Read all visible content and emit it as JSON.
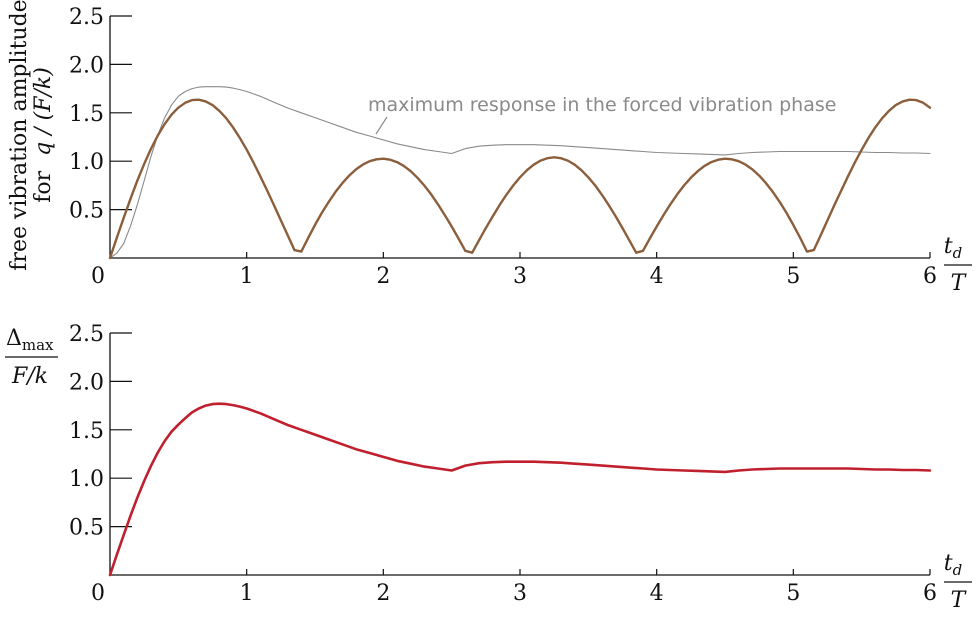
{
  "colors": {
    "top_series": "#8b5e3c",
    "top_reference": "#8a8a8a",
    "bottom_series": "#c0202e",
    "axis": "#111111"
  },
  "chart_data": [
    {
      "type": "line",
      "ylabel_line1": "free vibration amplitude",
      "ylabel_line2_prefix": "for",
      "ylabel_line2_math": "q / (F/k)",
      "xlabel_numerator": "t",
      "xlabel_numerator_sub": "d",
      "xlabel_denominator": "T",
      "xlim": [
        0,
        6
      ],
      "ylim": [
        0,
        2.5
      ],
      "xticks": [
        "0",
        "1",
        "2",
        "3",
        "4",
        "5",
        "6"
      ],
      "yticks": [
        "0.5",
        "1.0",
        "1.5",
        "2.0",
        "2.5"
      ],
      "grid": false,
      "annotation": {
        "text": "maximum response in the forced vibration phase",
        "points_to": [
          1.95,
          1.31
        ]
      },
      "series": [
        {
          "style": "thick",
          "x": [
            0,
            0.05,
            0.1,
            0.15,
            0.2,
            0.25,
            0.3,
            0.35,
            0.4,
            0.45,
            0.5,
            0.55,
            0.6,
            0.65,
            0.7,
            0.75,
            0.8,
            0.85,
            0.9,
            0.95,
            1,
            1.05,
            1.1,
            1.15,
            1.2,
            1.25,
            1.3,
            1.35,
            1.4,
            1.45,
            1.5,
            1.55,
            1.6,
            1.65,
            1.7,
            1.75,
            1.8,
            1.85,
            1.9,
            1.95,
            2,
            2.05,
            2.1,
            2.15,
            2.2,
            2.25,
            2.3,
            2.35,
            2.4,
            2.45,
            2.5,
            2.55,
            2.6,
            2.65,
            2.7,
            2.75,
            2.8,
            2.85,
            2.9,
            2.95,
            3,
            3.05,
            3.1,
            3.15,
            3.2,
            3.25,
            3.3,
            3.35,
            3.4,
            3.45,
            3.5,
            3.55,
            3.6,
            3.65,
            3.7,
            3.75,
            3.8,
            3.85,
            3.9,
            3.95,
            4,
            4.05,
            4.1,
            4.15,
            4.2,
            4.25,
            4.3,
            4.35,
            4.4,
            4.45,
            4.5,
            4.55,
            4.6,
            4.65,
            4.7,
            4.75,
            4.8,
            4.85,
            4.9,
            4.95,
            5,
            5.05,
            5.1,
            5.15,
            5.2,
            5.25,
            5.3,
            5.35,
            5.4,
            5.45,
            5.5,
            5.55,
            5.6,
            5.65,
            5.7,
            5.75,
            5.8,
            5.85,
            5.9,
            5.95,
            6
          ],
          "y": [
            0,
            0.209,
            0.414,
            0.612,
            0.799,
            0.972,
            1.128,
            1.266,
            1.384,
            1.48,
            1.553,
            1.603,
            1.631,
            1.635,
            1.618,
            1.58,
            1.521,
            1.444,
            1.35,
            1.241,
            1.119,
            0.986,
            0.844,
            0.696,
            0.544,
            0.389,
            0.234,
            0.082,
            0.066,
            0.208,
            0.342,
            0.466,
            0.58,
            0.683,
            0.773,
            0.851,
            0.915,
            0.965,
            1.0,
            1.02,
            1.026,
            1.016,
            0.991,
            0.951,
            0.897,
            0.829,
            0.749,
            0.657,
            0.554,
            0.443,
            0.325,
            0.201,
            0.074,
            0.055,
            0.183,
            0.309,
            0.43,
            0.545,
            0.652,
            0.749,
            0.834,
            0.906,
            0.964,
            1.006,
            1.031,
            1.04,
            1.031,
            1.006,
            0.964,
            0.906,
            0.834,
            0.749,
            0.652,
            0.545,
            0.43,
            0.309,
            0.183,
            0.055,
            0.074,
            0.201,
            0.325,
            0.443,
            0.554,
            0.657,
            0.749,
            0.829,
            0.897,
            0.951,
            0.991,
            1.016,
            1.026,
            1.02,
            1.0,
            0.965,
            0.915,
            0.851,
            0.773,
            0.683,
            0.58,
            0.466,
            0.342,
            0.208,
            0.066,
            0.082,
            0.234,
            0.389,
            0.544,
            0.696,
            0.844,
            0.986,
            1.119,
            1.241,
            1.35,
            1.444,
            1.521,
            1.58,
            1.618,
            1.635,
            1.631,
            1.603,
            1.553
          ]
        },
        {
          "style": "thin",
          "x": [
            0,
            0.05,
            0.1,
            0.15,
            0.2,
            0.25,
            0.3,
            0.35,
            0.4,
            0.45,
            0.5,
            0.55,
            0.6,
            0.65,
            0.7,
            0.75,
            0.8,
            0.85,
            0.9,
            0.95,
            1,
            1.1,
            1.2,
            1.3,
            1.4,
            1.5,
            1.6,
            1.7,
            1.8,
            1.9,
            2,
            2.1,
            2.2,
            2.3,
            2.4,
            2.5,
            2.6,
            2.7,
            2.8,
            2.9,
            3,
            3.1,
            3.2,
            3.3,
            3.4,
            3.5,
            3.6,
            3.7,
            3.8,
            3.9,
            4,
            4.1,
            4.2,
            4.3,
            4.4,
            4.5,
            4.6,
            4.7,
            4.8,
            4.9,
            5,
            5.1,
            5.2,
            5.3,
            5.4,
            5.5,
            5.6,
            5.7,
            5.8,
            5.9,
            6
          ],
          "y": [
            0,
            0.05,
            0.15,
            0.33,
            0.55,
            0.8,
            1.05,
            1.27,
            1.45,
            1.58,
            1.67,
            1.72,
            1.75,
            1.765,
            1.77,
            1.77,
            1.77,
            1.765,
            1.755,
            1.74,
            1.72,
            1.67,
            1.61,
            1.55,
            1.5,
            1.45,
            1.4,
            1.35,
            1.3,
            1.26,
            1.22,
            1.18,
            1.15,
            1.12,
            1.1,
            1.08,
            1.13,
            1.155,
            1.165,
            1.17,
            1.17,
            1.17,
            1.165,
            1.16,
            1.15,
            1.14,
            1.13,
            1.12,
            1.11,
            1.1,
            1.09,
            1.085,
            1.08,
            1.075,
            1.07,
            1.065,
            1.08,
            1.09,
            1.095,
            1.1,
            1.1,
            1.1,
            1.1,
            1.1,
            1.1,
            1.095,
            1.09,
            1.09,
            1.085,
            1.085,
            1.08
          ]
        }
      ]
    },
    {
      "type": "line",
      "ylabel_numerator": "Δ",
      "ylabel_numerator_sub": "max",
      "ylabel_denominator": "F/k",
      "xlabel_numerator": "t",
      "xlabel_numerator_sub": "d",
      "xlabel_denominator": "T",
      "xlim": [
        0,
        6
      ],
      "ylim": [
        0,
        2.5
      ],
      "xticks": [
        "0",
        "1",
        "2",
        "3",
        "4",
        "5",
        "6"
      ],
      "yticks": [
        "0.5",
        "1.0",
        "1.5",
        "2.0",
        "2.5"
      ],
      "grid": false,
      "series": [
        {
          "style": "thick",
          "x": [
            0,
            0.05,
            0.1,
            0.15,
            0.2,
            0.25,
            0.3,
            0.35,
            0.4,
            0.45,
            0.5,
            0.55,
            0.6,
            0.65,
            0.7,
            0.75,
            0.8,
            0.85,
            0.9,
            0.95,
            1,
            1.1,
            1.2,
            1.3,
            1.4,
            1.5,
            1.6,
            1.7,
            1.8,
            1.9,
            2,
            2.1,
            2.2,
            2.3,
            2.4,
            2.5,
            2.6,
            2.7,
            2.8,
            2.9,
            3,
            3.1,
            3.2,
            3.3,
            3.4,
            3.5,
            3.6,
            3.7,
            3.8,
            3.9,
            4,
            4.1,
            4.2,
            4.3,
            4.4,
            4.5,
            4.6,
            4.7,
            4.8,
            4.9,
            5,
            5.1,
            5.2,
            5.3,
            5.4,
            5.5,
            5.6,
            5.7,
            5.8,
            5.9,
            6
          ],
          "y": [
            0,
            0.209,
            0.414,
            0.612,
            0.799,
            0.972,
            1.128,
            1.266,
            1.384,
            1.48,
            1.553,
            1.62,
            1.68,
            1.72,
            1.75,
            1.765,
            1.77,
            1.765,
            1.755,
            1.74,
            1.72,
            1.67,
            1.61,
            1.55,
            1.5,
            1.45,
            1.4,
            1.35,
            1.3,
            1.26,
            1.22,
            1.18,
            1.15,
            1.12,
            1.1,
            1.08,
            1.13,
            1.155,
            1.165,
            1.17,
            1.17,
            1.17,
            1.165,
            1.16,
            1.15,
            1.14,
            1.13,
            1.12,
            1.11,
            1.1,
            1.09,
            1.085,
            1.08,
            1.075,
            1.07,
            1.065,
            1.08,
            1.09,
            1.095,
            1.1,
            1.1,
            1.1,
            1.1,
            1.1,
            1.1,
            1.095,
            1.09,
            1.09,
            1.085,
            1.085,
            1.08
          ]
        }
      ]
    }
  ]
}
